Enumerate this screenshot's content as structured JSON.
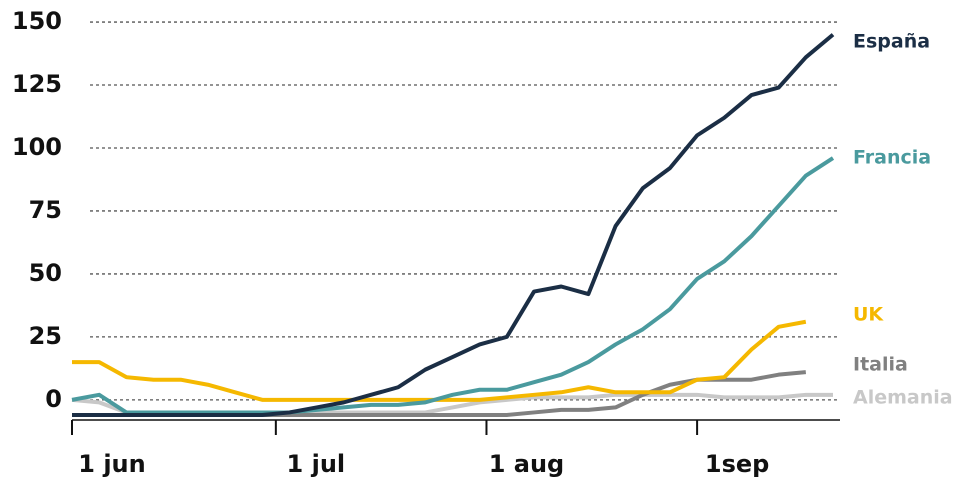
{
  "chart_data": {
    "type": "line",
    "x": [
      0,
      4,
      8,
      12,
      16,
      20,
      24,
      28,
      32,
      36,
      40,
      44,
      48,
      52,
      56,
      60,
      64,
      68,
      72,
      76,
      80,
      84,
      88,
      92,
      96,
      100,
      104,
      108,
      112
    ],
    "xlim": [
      0,
      112
    ],
    "xticks": [
      {
        "value": 0,
        "label": "1 jun"
      },
      {
        "value": 30,
        "label": "1 jul"
      },
      {
        "value": 61,
        "label": "1 aug"
      },
      {
        "value": 92,
        "label": "1sep"
      }
    ],
    "ylim": [
      -8,
      152
    ],
    "yticks": [
      0,
      25,
      50,
      75,
      100,
      125,
      150
    ],
    "grid": true,
    "series": [
      {
        "name": "España",
        "color": "#1b2e45",
        "values": [
          -6,
          -6,
          -6,
          -6,
          -6,
          -6,
          -6,
          -6,
          -5,
          -3,
          -1,
          2,
          5,
          12,
          17,
          22,
          25,
          43,
          45,
          42,
          69,
          84,
          92,
          105,
          112,
          121,
          124,
          136,
          145
        ]
      },
      {
        "name": "Francia",
        "color": "#4a9a9e",
        "values": [
          0,
          2,
          -5,
          -5,
          -5,
          -5,
          -5,
          -5,
          -5,
          -4,
          -3,
          -2,
          -2,
          -1,
          2,
          4,
          4,
          7,
          10,
          15,
          22,
          28,
          36,
          48,
          55,
          65,
          77,
          89,
          96
        ]
      },
      {
        "name": "UK",
        "color": "#f5b800",
        "values": [
          15,
          15,
          9,
          8,
          8,
          6,
          3,
          0,
          0,
          0,
          0,
          0,
          0,
          0,
          0,
          0,
          1,
          2,
          3,
          5,
          3,
          3,
          3,
          8,
          9,
          20,
          29,
          31,
          null
        ]
      },
      {
        "name": "Italia",
        "color": "#808080",
        "values": [
          -6,
          -6,
          -6,
          -6,
          -6,
          -6,
          -6,
          -6,
          -6,
          -6,
          -6,
          -6,
          -6,
          -6,
          -6,
          -6,
          -6,
          -5,
          -4,
          -4,
          -3,
          2,
          6,
          8,
          8,
          8,
          10,
          11,
          null
        ]
      },
      {
        "name": "Alemania",
        "color": "#c8c8c8",
        "values": [
          0,
          -1,
          -5,
          -5,
          -5,
          -5,
          -5,
          -5,
          -5,
          -5,
          -5,
          -5,
          -5,
          -5,
          -3,
          -1,
          0,
          1,
          1,
          1,
          2,
          2,
          2,
          2,
          1,
          1,
          1,
          2,
          2
        ]
      }
    ]
  }
}
